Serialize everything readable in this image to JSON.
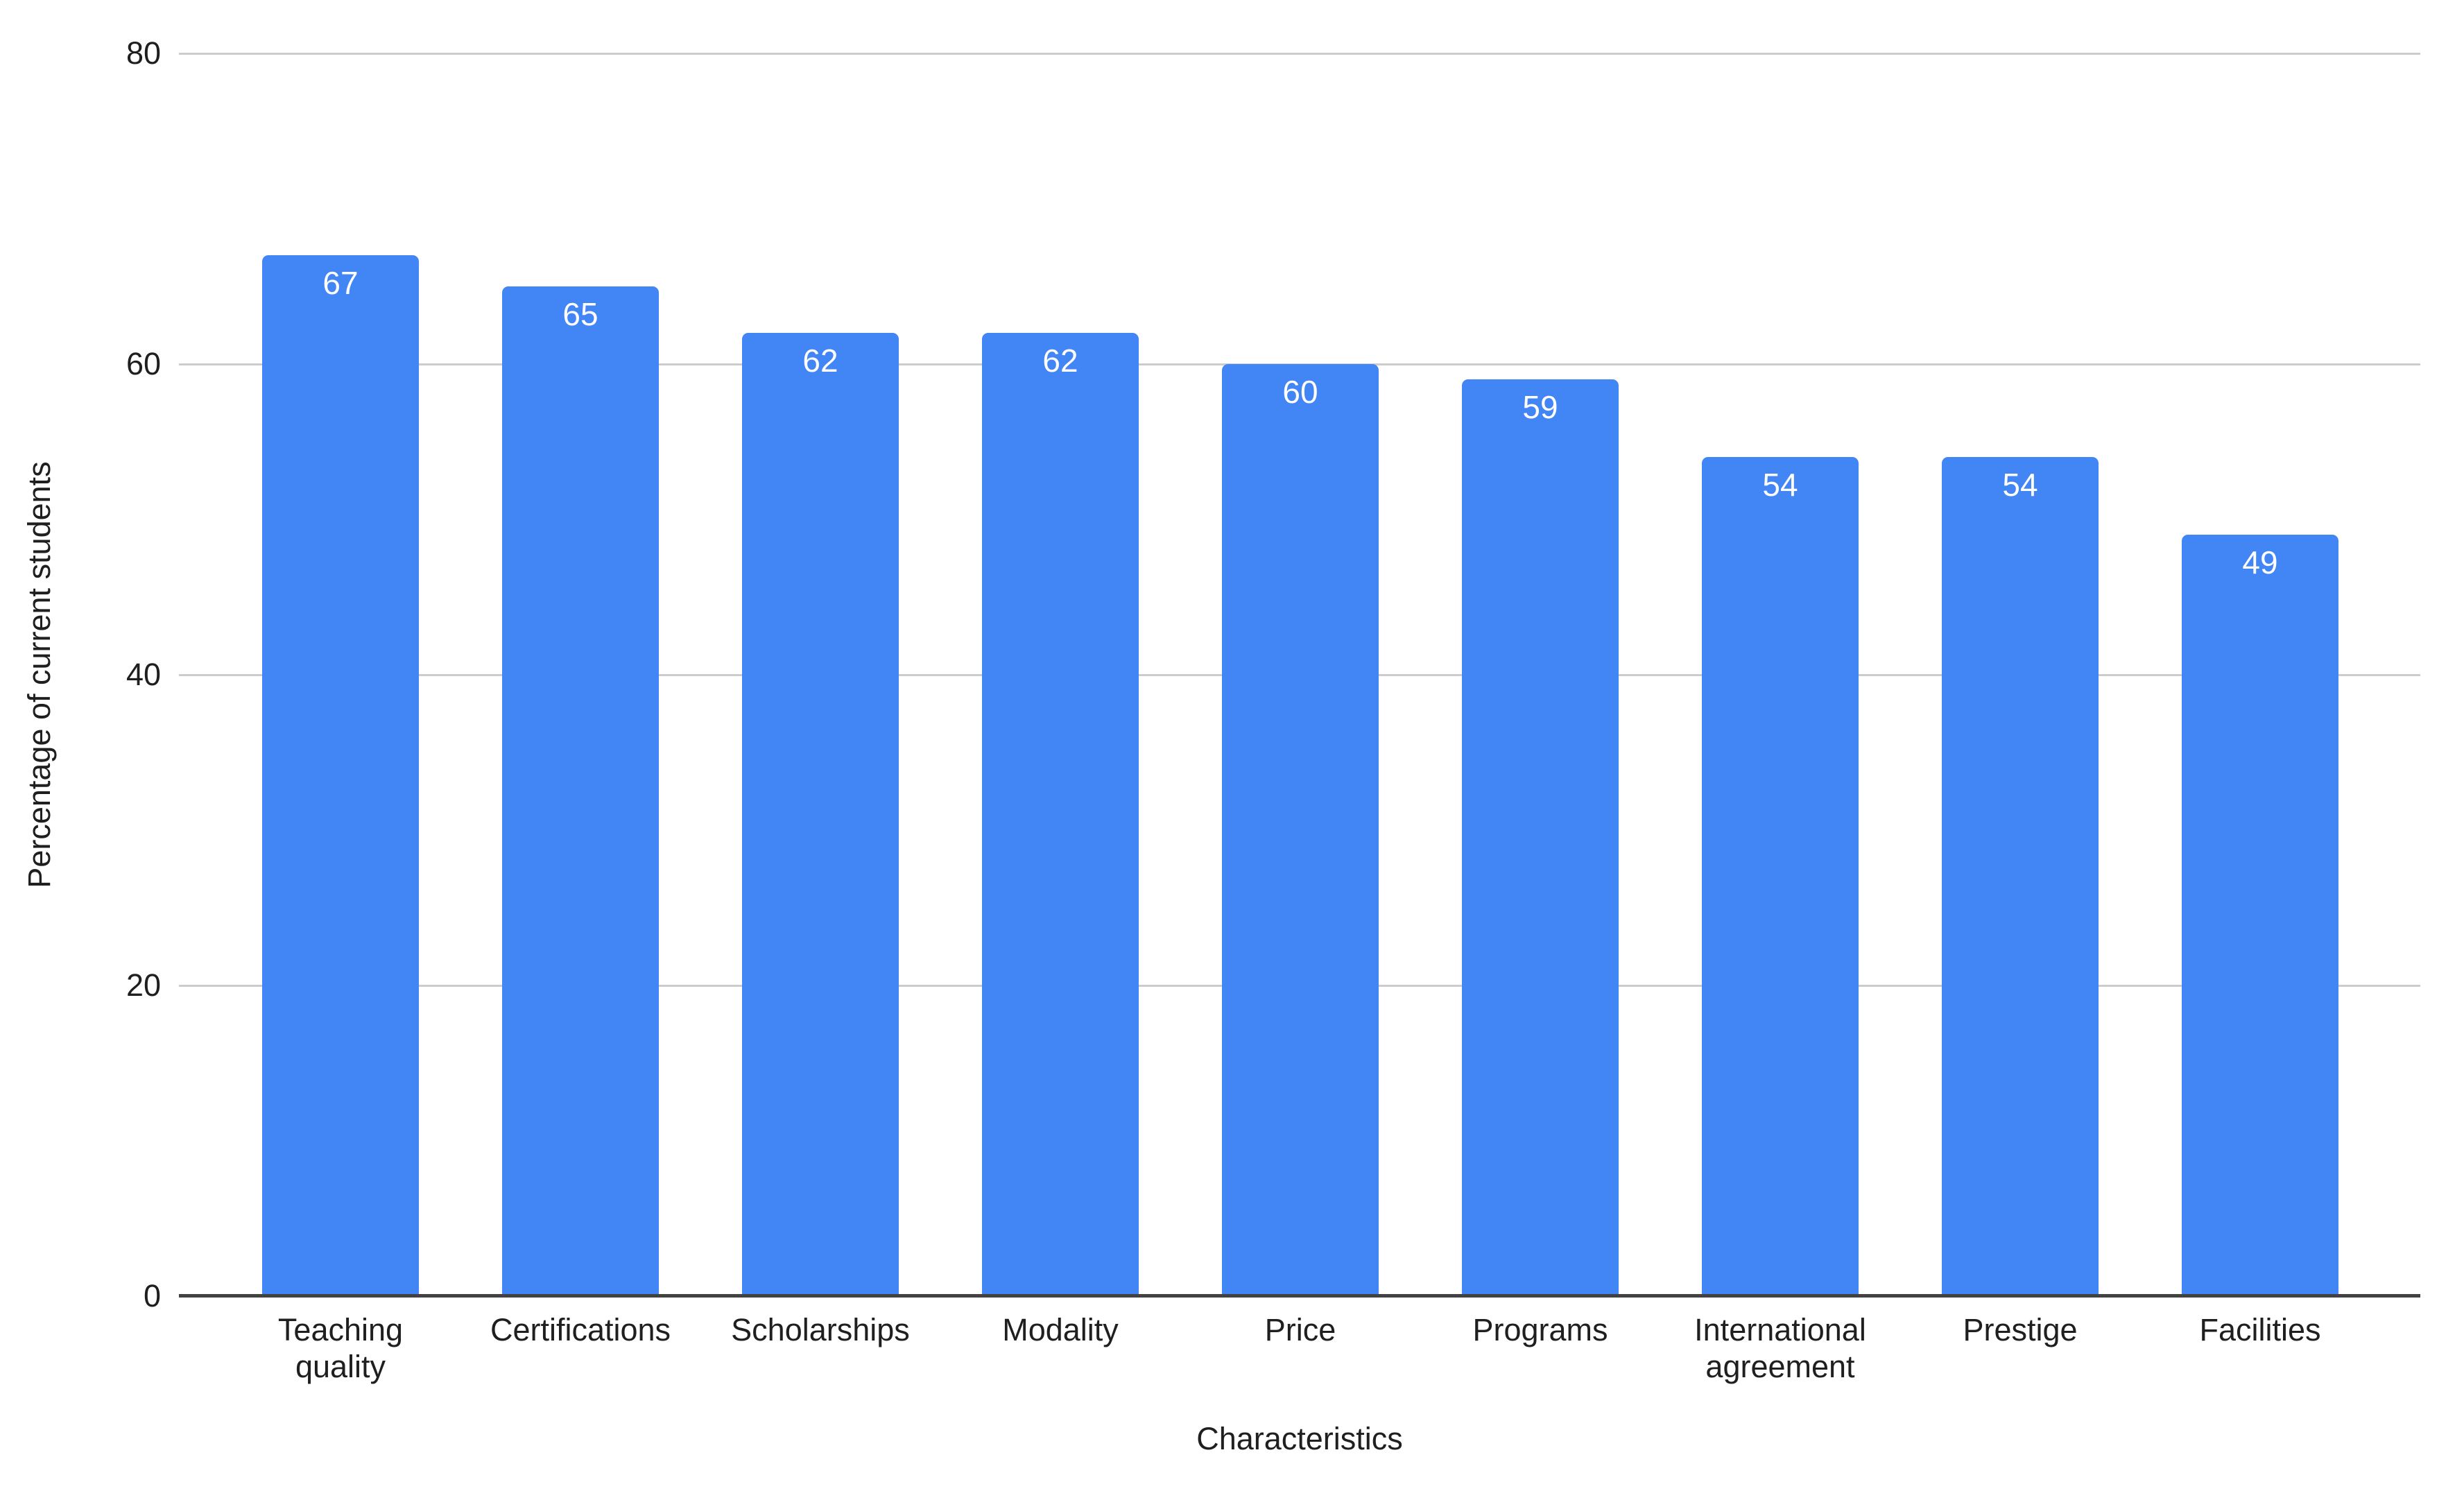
{
  "chart": {
    "x_title": "Characteristics",
    "y_title": "Percentage of current students",
    "bar_color": "#4285F4",
    "value_label_color": "#ffffff",
    "gridline_color": "#cccccc",
    "baseline_color": "#424242",
    "axis_text_color": "#1f1f1f"
  },
  "chart_data": {
    "type": "bar",
    "categories": [
      "Teaching quality",
      "Certifications",
      "Scholarships",
      "Modality",
      "Price",
      "Programs",
      "International agreement",
      "Prestige",
      "Facilities"
    ],
    "values": [
      67,
      65,
      62,
      62,
      60,
      59,
      54,
      54,
      49
    ],
    "title": "",
    "xlabel": "Characteristics",
    "ylabel": "Percentage of current students",
    "ylim": [
      0,
      80
    ],
    "yticks": [
      0,
      20,
      40,
      60,
      80
    ],
    "grid": true,
    "legend": "none",
    "bar_color": "#4285F4"
  }
}
